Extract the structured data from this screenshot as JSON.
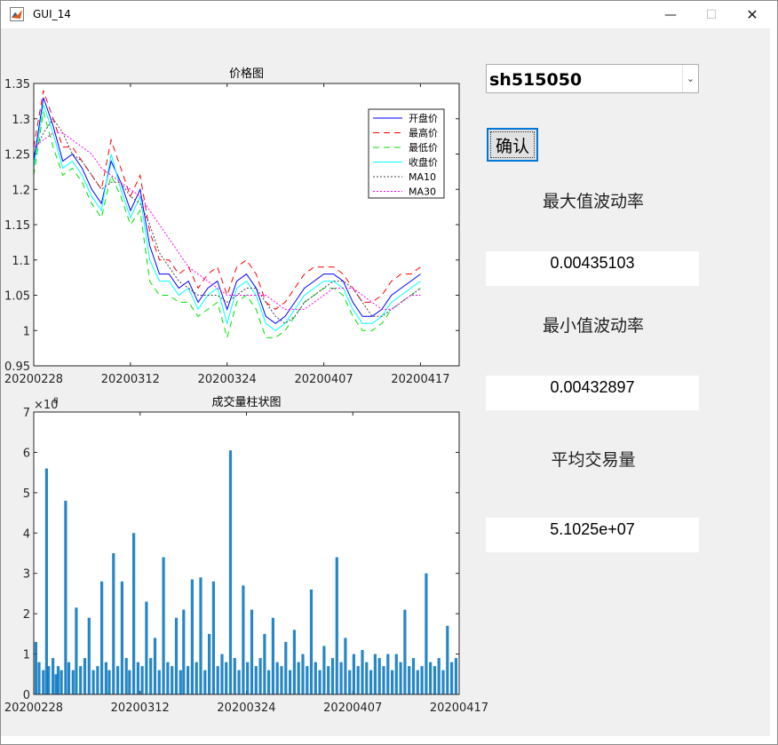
{
  "window": {
    "title": "GUI_14",
    "minimize_glyph": "—",
    "maximize_glyph": "☐",
    "close_glyph": "✕",
    "app_icon": "matlab-icon"
  },
  "controls": {
    "stock_select": {
      "value": "sh515050",
      "arrow": "⌄"
    },
    "confirm_label": "确认",
    "max_vol_label": "最大值波动率",
    "max_vol_value": "0.00435103",
    "min_vol_label": "最小值波动率",
    "min_vol_value": "0.00432897",
    "avg_volume_label": "平均交易量",
    "avg_volume_value": "5.1025e+07"
  },
  "chart_data": [
    {
      "type": "line",
      "title": "价格图",
      "xlabel": "",
      "ylabel": "",
      "xticklabels": [
        "20200228",
        "20200312",
        "20200324",
        "20200407",
        "20200417"
      ],
      "xtick_pos": [
        0,
        10,
        20,
        30,
        40
      ],
      "xlim": [
        0,
        44
      ],
      "ylim": [
        0.95,
        1.35
      ],
      "yticks": [
        0.95,
        1,
        1.05,
        1.1,
        1.15,
        1.2,
        1.25,
        1.3,
        1.35
      ],
      "legend_position": "top-right",
      "x": [
        0,
        1,
        2,
        3,
        4,
        5,
        6,
        7,
        8,
        9,
        10,
        11,
        12,
        13,
        14,
        15,
        16,
        17,
        18,
        19,
        20,
        21,
        22,
        23,
        24,
        25,
        26,
        27,
        28,
        29,
        30,
        31,
        32,
        33,
        34,
        35,
        36,
        37,
        38,
        39,
        40
      ],
      "series": [
        {
          "name": "开盘价",
          "color": "#0000ff",
          "dash": "",
          "values": [
            1.24,
            1.33,
            1.29,
            1.24,
            1.25,
            1.23,
            1.2,
            1.18,
            1.24,
            1.21,
            1.17,
            1.2,
            1.12,
            1.08,
            1.08,
            1.06,
            1.07,
            1.04,
            1.06,
            1.07,
            1.03,
            1.07,
            1.08,
            1.06,
            1.02,
            1.01,
            1.02,
            1.04,
            1.06,
            1.07,
            1.08,
            1.08,
            1.07,
            1.04,
            1.02,
            1.02,
            1.03,
            1.05,
            1.06,
            1.07,
            1.08
          ]
        },
        {
          "name": "最高价",
          "color": "#ff0000",
          "dash": "7,5",
          "values": [
            1.26,
            1.34,
            1.3,
            1.26,
            1.26,
            1.24,
            1.22,
            1.2,
            1.27,
            1.23,
            1.19,
            1.22,
            1.14,
            1.1,
            1.1,
            1.08,
            1.09,
            1.06,
            1.08,
            1.09,
            1.05,
            1.09,
            1.1,
            1.08,
            1.04,
            1.03,
            1.04,
            1.06,
            1.08,
            1.09,
            1.09,
            1.09,
            1.08,
            1.06,
            1.04,
            1.04,
            1.05,
            1.07,
            1.08,
            1.08,
            1.09
          ]
        },
        {
          "name": "最低价",
          "color": "#00e000",
          "dash": "7,5",
          "values": [
            1.22,
            1.31,
            1.26,
            1.22,
            1.23,
            1.21,
            1.18,
            1.16,
            1.22,
            1.19,
            1.15,
            1.17,
            1.07,
            1.05,
            1.05,
            1.04,
            1.04,
            1.02,
            1.03,
            1.04,
            0.99,
            1.04,
            1.05,
            1.03,
            0.99,
            0.99,
            1.0,
            1.02,
            1.04,
            1.05,
            1.06,
            1.06,
            1.05,
            1.02,
            1.0,
            1.0,
            1.01,
            1.03,
            1.04,
            1.05,
            1.06
          ]
        },
        {
          "name": "收盘价",
          "color": "#00ffff",
          "dash": "",
          "values": [
            1.23,
            1.32,
            1.28,
            1.23,
            1.24,
            1.22,
            1.19,
            1.17,
            1.25,
            1.2,
            1.16,
            1.19,
            1.1,
            1.07,
            1.07,
            1.05,
            1.06,
            1.03,
            1.05,
            1.06,
            1.01,
            1.06,
            1.07,
            1.05,
            1.01,
            1.0,
            1.01,
            1.03,
            1.05,
            1.06,
            1.07,
            1.07,
            1.06,
            1.03,
            1.01,
            1.01,
            1.02,
            1.04,
            1.05,
            1.06,
            1.07
          ]
        },
        {
          "name": "MA10",
          "color": "#404040",
          "dash": "2,2",
          "values": [
            1.25,
            1.28,
            1.3,
            1.28,
            1.25,
            1.24,
            1.22,
            1.2,
            1.21,
            1.21,
            1.19,
            1.18,
            1.15,
            1.11,
            1.09,
            1.07,
            1.06,
            1.05,
            1.05,
            1.05,
            1.04,
            1.05,
            1.06,
            1.06,
            1.04,
            1.02,
            1.01,
            1.02,
            1.04,
            1.05,
            1.06,
            1.07,
            1.07,
            1.06,
            1.04,
            1.02,
            1.02,
            1.03,
            1.04,
            1.05,
            1.06
          ]
        },
        {
          "name": "MA30",
          "color": "#ff00ff",
          "dash": "2,2",
          "values": [
            1.26,
            1.27,
            1.28,
            1.28,
            1.27,
            1.26,
            1.25,
            1.23,
            1.22,
            1.21,
            1.2,
            1.19,
            1.17,
            1.15,
            1.13,
            1.11,
            1.09,
            1.08,
            1.07,
            1.06,
            1.05,
            1.05,
            1.05,
            1.05,
            1.05,
            1.04,
            1.03,
            1.03,
            1.03,
            1.04,
            1.05,
            1.06,
            1.06,
            1.06,
            1.05,
            1.04,
            1.03,
            1.03,
            1.04,
            1.05,
            1.05
          ]
        }
      ]
    },
    {
      "type": "bar",
      "title": "成交量柱状图",
      "xlabel": "",
      "ylabel": "",
      "exponent_label": "×10",
      "exponent_power": "8",
      "xticklabels": [
        "20200228",
        "20200312",
        "20200324",
        "20200407",
        "20200417"
      ],
      "xtick_pos": [
        0,
        10,
        20,
        30,
        40
      ],
      "xlim": [
        0,
        40
      ],
      "ylim": [
        0,
        7
      ],
      "yticks": [
        0,
        1,
        2,
        3,
        4,
        5,
        6,
        7
      ],
      "color": "#0072bd",
      "x": [
        0.2,
        0.5,
        0.9,
        1.2,
        1.4,
        1.8,
        2.1,
        2.3,
        2.6,
        3.0,
        3.3,
        3.7,
        4.0,
        4.4,
        4.8,
        5.2,
        5.6,
        6.0,
        6.4,
        6.8,
        7.1,
        7.5,
        7.9,
        8.3,
        8.7,
        9.0,
        9.4,
        9.8,
        10.2,
        10.6,
        11.0,
        11.4,
        11.8,
        12.2,
        12.6,
        13.0,
        13.4,
        13.8,
        14.1,
        14.5,
        14.9,
        15.3,
        15.7,
        16.1,
        16.5,
        16.9,
        17.3,
        17.7,
        18.1,
        18.5,
        18.9,
        19.3,
        19.7,
        20.1,
        20.5,
        20.9,
        21.3,
        21.7,
        22.1,
        22.5,
        22.9,
        23.3,
        23.7,
        24.1,
        24.5,
        24.9,
        25.3,
        25.7,
        26.1,
        26.5,
        26.9,
        27.3,
        27.7,
        28.1,
        28.5,
        28.9,
        29.3,
        29.7,
        30.1,
        30.5,
        30.9,
        31.3,
        31.7,
        32.1,
        32.5,
        32.9,
        33.3,
        33.7,
        34.1,
        34.5,
        34.9,
        35.3,
        35.7,
        36.1,
        36.5,
        36.9,
        37.3,
        37.7,
        38.1,
        38.5,
        38.9,
        39.3,
        39.7
      ],
      "values": [
        1.3,
        0.8,
        0.6,
        5.6,
        0.7,
        0.9,
        0.5,
        0.7,
        0.6,
        4.8,
        0.8,
        0.6,
        2.15,
        0.7,
        0.9,
        1.9,
        0.6,
        0.7,
        2.8,
        0.8,
        0.6,
        3.5,
        0.7,
        2.8,
        0.9,
        0.6,
        4.0,
        0.8,
        0.7,
        2.3,
        0.9,
        1.4,
        0.6,
        3.4,
        0.8,
        0.7,
        1.9,
        0.6,
        2.1,
        0.7,
        2.85,
        0.8,
        2.9,
        0.6,
        1.5,
        2.8,
        0.7,
        1.0,
        0.8,
        6.05,
        0.9,
        0.6,
        2.7,
        0.8,
        2.1,
        0.7,
        0.9,
        1.5,
        0.6,
        1.9,
        0.8,
        0.7,
        1.3,
        0.6,
        1.6,
        0.8,
        1.0,
        0.7,
        2.6,
        0.8,
        0.6,
        1.2,
        0.7,
        0.9,
        3.4,
        0.8,
        1.4,
        0.6,
        1.0,
        0.7,
        1.1,
        0.8,
        0.6,
        1.0,
        0.9,
        0.7,
        1.0,
        0.6,
        1.0,
        0.8,
        2.1,
        0.7,
        0.9,
        0.6,
        0.7,
        3.0,
        0.8,
        0.7,
        0.9,
        0.6,
        1.7,
        0.8,
        0.9
      ]
    }
  ]
}
